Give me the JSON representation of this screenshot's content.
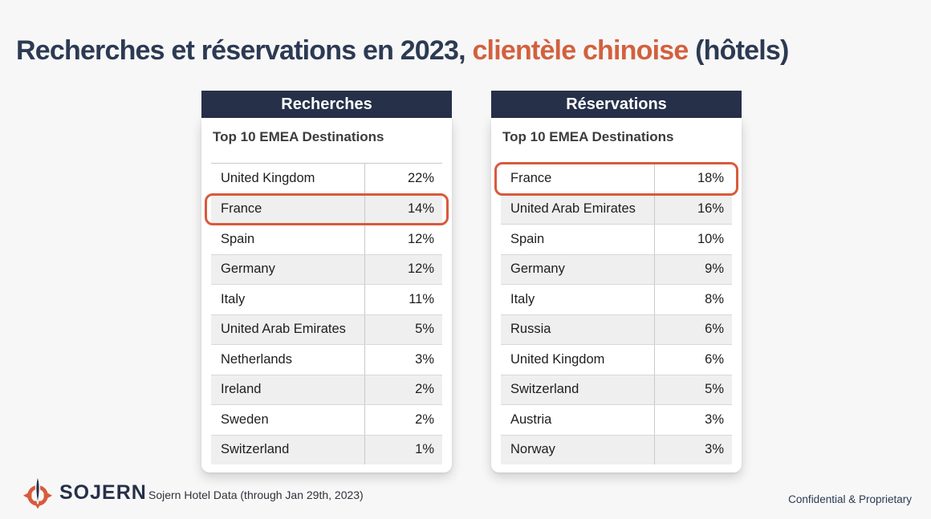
{
  "title": {
    "part1": "Recherches et réservations en 2023, ",
    "highlight": "clientèle chinoise",
    "part2": " (hôtels)"
  },
  "tables": [
    {
      "header": "Recherches",
      "subtitle": "Top 10 EMEA Destinations",
      "rows": [
        {
          "country": "United Kingdom",
          "value": "22%",
          "highlighted": false
        },
        {
          "country": "France",
          "value": "14%",
          "highlighted": true
        },
        {
          "country": "Spain",
          "value": "12%",
          "highlighted": false
        },
        {
          "country": "Germany",
          "value": "12%",
          "highlighted": false
        },
        {
          "country": "Italy",
          "value": "11%",
          "highlighted": false
        },
        {
          "country": "United Arab Emirates",
          "value": "5%",
          "highlighted": false
        },
        {
          "country": "Netherlands",
          "value": "3%",
          "highlighted": false
        },
        {
          "country": "Ireland",
          "value": "2%",
          "highlighted": false
        },
        {
          "country": "Sweden",
          "value": "2%",
          "highlighted": false
        },
        {
          "country": "Switzerland",
          "value": "1%",
          "highlighted": false
        }
      ]
    },
    {
      "header": "Réservations",
      "subtitle": "Top 10 EMEA Destinations",
      "rows": [
        {
          "country": "France",
          "value": "18%",
          "highlighted": true
        },
        {
          "country": "United Arab Emirates",
          "value": "16%",
          "highlighted": false
        },
        {
          "country": "Spain",
          "value": "10%",
          "highlighted": false
        },
        {
          "country": "Germany",
          "value": "9%",
          "highlighted": false
        },
        {
          "country": "Italy",
          "value": "8%",
          "highlighted": false
        },
        {
          "country": "Russia",
          "value": "6%",
          "highlighted": false
        },
        {
          "country": "United Kingdom",
          "value": "6%",
          "highlighted": false
        },
        {
          "country": "Switzerland",
          "value": "5%",
          "highlighted": false
        },
        {
          "country": "Austria",
          "value": "3%",
          "highlighted": false
        },
        {
          "country": "Norway",
          "value": "3%",
          "highlighted": false
        }
      ]
    }
  ],
  "footer": {
    "brand": "SOJERN",
    "source": "Sojern Hotel Data (through Jan 29th, 2023)",
    "confidential": "Confidential & Proprietary"
  },
  "colors": {
    "navy": "#263049",
    "title_navy": "#2c3a53",
    "orange": "#d85a3c",
    "title_orange": "#d2613e",
    "background": "#f7f7f7",
    "stripe": "#efefef"
  },
  "chart_data": [
    {
      "type": "table",
      "title": "Recherches",
      "subtitle": "Top 10 EMEA Destinations",
      "categories": [
        "United Kingdom",
        "France",
        "Spain",
        "Germany",
        "Italy",
        "United Arab Emirates",
        "Netherlands",
        "Ireland",
        "Sweden",
        "Switzerland"
      ],
      "values": [
        22,
        14,
        12,
        12,
        11,
        5,
        3,
        2,
        2,
        1
      ],
      "unit": "%",
      "highlighted_category": "France"
    },
    {
      "type": "table",
      "title": "Réservations",
      "subtitle": "Top 10 EMEA Destinations",
      "categories": [
        "France",
        "United Arab Emirates",
        "Spain",
        "Germany",
        "Italy",
        "Russia",
        "United Kingdom",
        "Switzerland",
        "Austria",
        "Norway"
      ],
      "values": [
        18,
        16,
        10,
        9,
        8,
        6,
        6,
        5,
        3,
        3
      ],
      "unit": "%",
      "highlighted_category": "France"
    }
  ]
}
